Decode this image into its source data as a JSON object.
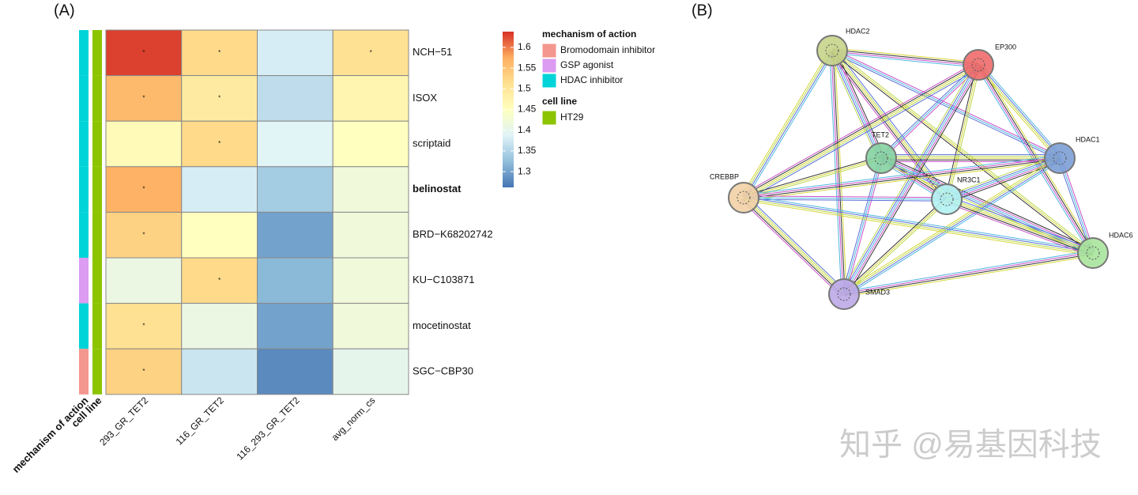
{
  "panel_labels": [
    "(A)",
    "(B)"
  ],
  "chart_data": {
    "type": "heatmap",
    "categories": [
      "NCH−51",
      "ISOX",
      "scriptaid",
      "belinostat",
      "BRD−K68202742",
      "KU−C103871",
      "mocetinostat",
      "SGC−CBP30"
    ],
    "bold_row": 3,
    "x_categories": [
      "293_GR_TET2",
      "116_GR_TET2",
      "116_293_GR_TET2",
      "avg_norm_cs"
    ],
    "values": [
      [
        1.63,
        1.52,
        1.38,
        1.51
      ],
      [
        1.56,
        1.49,
        1.36,
        1.47
      ],
      [
        1.46,
        1.52,
        1.39,
        1.45
      ],
      [
        1.57,
        1.38,
        1.34,
        1.42
      ],
      [
        1.53,
        1.45,
        1.3,
        1.42
      ],
      [
        1.41,
        1.52,
        1.32,
        1.42
      ],
      [
        1.51,
        1.41,
        1.3,
        1.42
      ],
      [
        1.53,
        1.37,
        1.28,
        1.4
      ]
    ],
    "annotations": [
      [
        "*",
        "*",
        null,
        "*"
      ],
      [
        "*",
        "*",
        null,
        null
      ],
      [
        null,
        "*",
        null,
        null
      ],
      [
        "*",
        null,
        null,
        null
      ],
      [
        "*",
        null,
        null,
        null
      ],
      [
        null,
        "*",
        null,
        null
      ],
      [
        "*",
        null,
        null,
        null
      ],
      [
        "*",
        null,
        null,
        null
      ]
    ],
    "colorbar": {
      "lim": [
        1.262,
        1.638
      ],
      "ticks": [
        1.3,
        1.35,
        1.4,
        1.45,
        1.5,
        1.55,
        1.6
      ],
      "colors": [
        "#4575b4",
        "#91bfdb",
        "#e0f3f8",
        "#ffffbf",
        "#fee090",
        "#fdae61",
        "#d73027"
      ]
    },
    "row_annotations": [
      {
        "name": "mechanism of action",
        "items": [
          {
            "name": "Bromodomain inhibitor",
            "color": "#f4978e"
          },
          {
            "name": "GSP agonist",
            "color": "#dc9cf2"
          },
          {
            "name": "HDAC inhibitor",
            "color": "#00d4d8"
          }
        ],
        "values": [
          "HDAC inhibitor",
          "HDAC inhibitor",
          "HDAC inhibitor",
          "HDAC inhibitor",
          "HDAC inhibitor",
          "GSP agonist",
          "HDAC inhibitor",
          "Bromodomain inhibitor"
        ]
      },
      {
        "name": "cell line",
        "items": [
          {
            "name": "HT29",
            "color": "#8cc400"
          }
        ],
        "values": [
          "HT29",
          "HT29",
          "HT29",
          "HT29",
          "HT29",
          "HT29",
          "HT29",
          "HT29"
        ]
      }
    ]
  },
  "network": {
    "nodes": [
      {
        "label": "HDAC2",
        "color": "#c6d48a"
      },
      {
        "label": "EP300",
        "color": "#f06a6a"
      },
      {
        "label": "TET2",
        "color": "#86d3a2"
      },
      {
        "label": "HDAC1",
        "color": "#7c9fd6"
      },
      {
        "label": "CREBBP",
        "color": "#f2d2a6"
      },
      {
        "label": "NR3C1",
        "color": "#b2f2f2"
      },
      {
        "label": "HDAC6",
        "color": "#a8e49c"
      },
      {
        "label": "SMAD3",
        "color": "#bca8e8"
      }
    ]
  },
  "watermark": "知乎 @易基因科技"
}
